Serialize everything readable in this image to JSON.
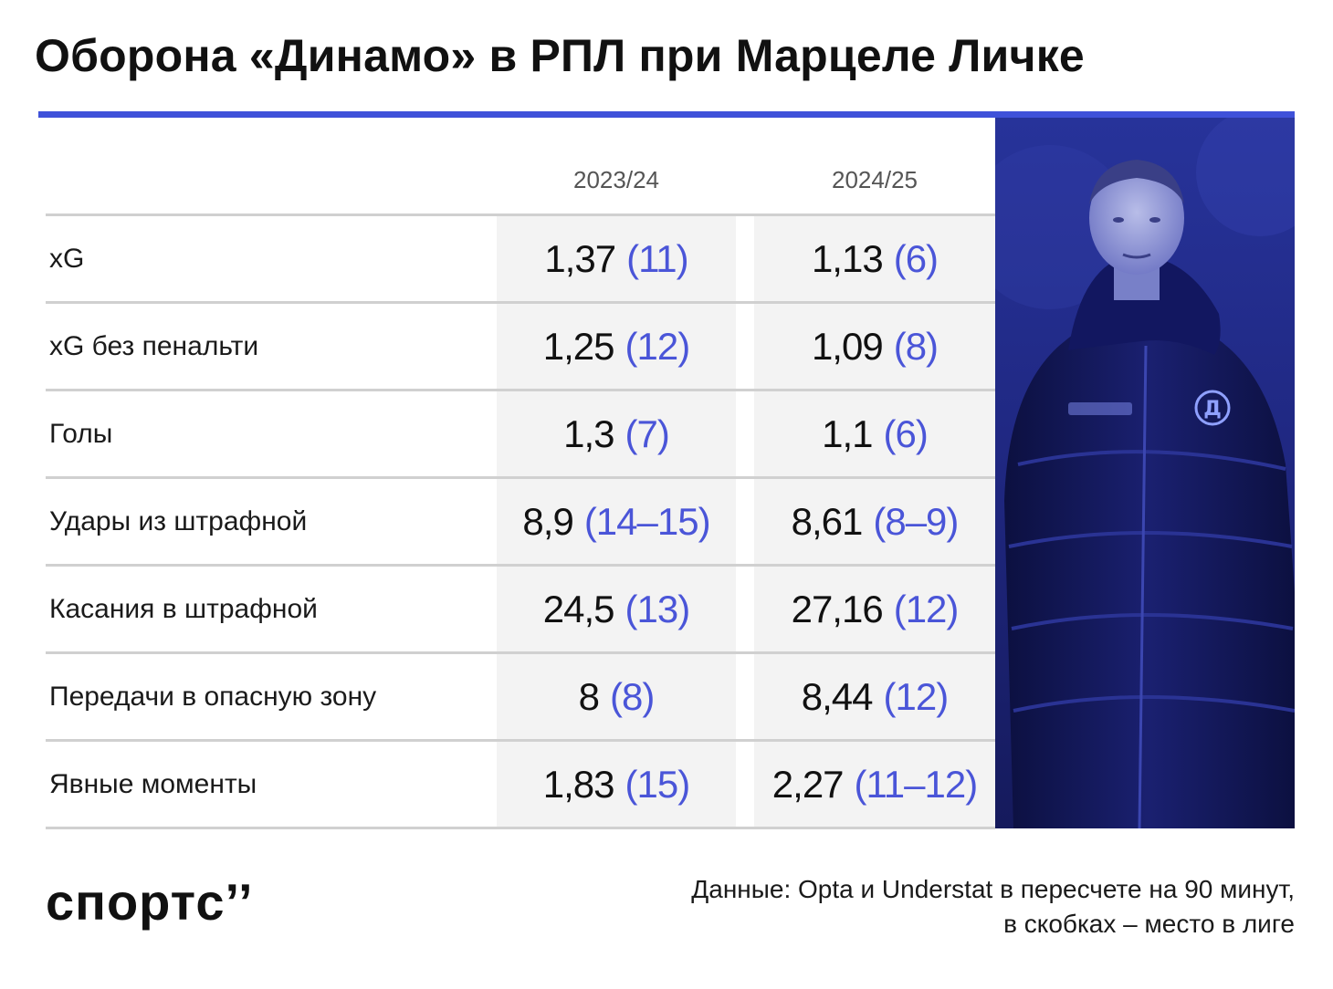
{
  "title": "Оборона «Динамо» в РПЛ при Марцеле Личке",
  "accent_color": "#3f51d9",
  "columns": [
    "2023/24",
    "2024/25"
  ],
  "rows": [
    {
      "label": "xG",
      "v1": "1,37",
      "r1": "(11)",
      "v2": "1,13",
      "r2": "(6)"
    },
    {
      "label": "xG без пенальти",
      "v1": "1,25",
      "r1": "(12)",
      "v2": "1,09",
      "r2": "(8)"
    },
    {
      "label": "Голы",
      "v1": "1,3",
      "r1": "(7)",
      "v2": "1,1",
      "r2": "(6)"
    },
    {
      "label": "Удары из штрафной",
      "v1": "8,9",
      "r1": "(14–15)",
      "v2": "8,61",
      "r2": "(8–9)"
    },
    {
      "label": "Касания в штрафной",
      "v1": "24,5",
      "r1": "(13)",
      "v2": "27,16",
      "r2": "(12)"
    },
    {
      "label": "Передачи в опасную зону",
      "v1": "8",
      "r1": "(8)",
      "v2": "8,44",
      "r2": "(12)"
    },
    {
      "label": "Явные моменты",
      "v1": "1,83",
      "r1": "(15)",
      "v2": "2,27",
      "r2": "(11–12)"
    }
  ],
  "logo_text": "спортс’’",
  "source": {
    "line1": "Данные: Opta и Understat в пересчете на 90 минут,",
    "line2": "в скобках – место в лиге"
  }
}
